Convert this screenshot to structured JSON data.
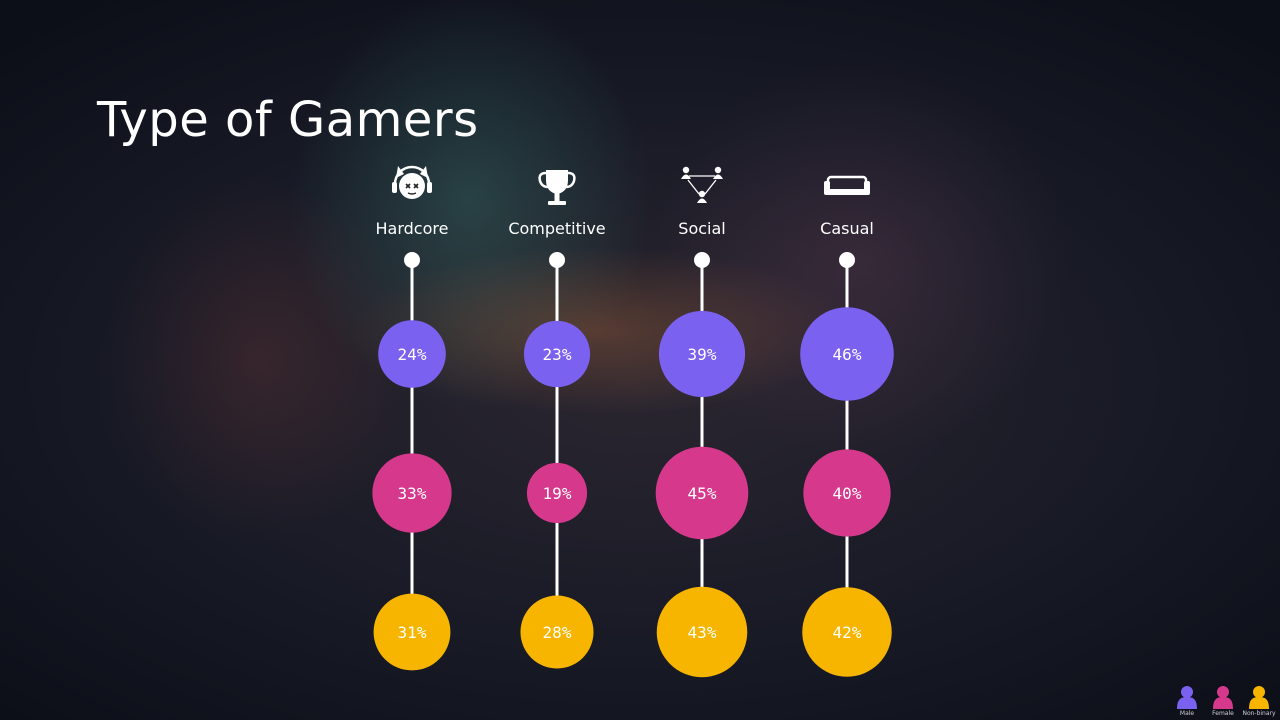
{
  "title": "Type of Gamers",
  "colors": {
    "male": "#7B61F0",
    "female": "#D6398C",
    "nonbinary": "#F7B500",
    "stem": "#ffffff"
  },
  "legend": [
    {
      "label": "Male",
      "color": "#7B61F0"
    },
    {
      "label": "Female",
      "color": "#D6398C"
    },
    {
      "label": "Non-binary",
      "color": "#F7B500"
    }
  ],
  "chart_data": {
    "type": "bubble",
    "categories": [
      "Hardcore",
      "Competitive",
      "Social",
      "Casual"
    ],
    "icons": [
      "headset-icon",
      "trophy-icon",
      "network-icon",
      "sofa-icon"
    ],
    "series": [
      {
        "name": "Male",
        "values": [
          24,
          23,
          39,
          46
        ],
        "labels": [
          "24%",
          "23%",
          "39%",
          "46%"
        ]
      },
      {
        "name": "Female",
        "values": [
          33,
          19,
          45,
          40
        ],
        "labels": [
          "33%",
          "19%",
          "45%",
          "40%"
        ]
      },
      {
        "name": "Non-binary",
        "values": [
          31,
          28,
          43,
          42
        ],
        "labels": [
          "31%",
          "28%",
          "43%",
          "42%"
        ]
      }
    ]
  }
}
